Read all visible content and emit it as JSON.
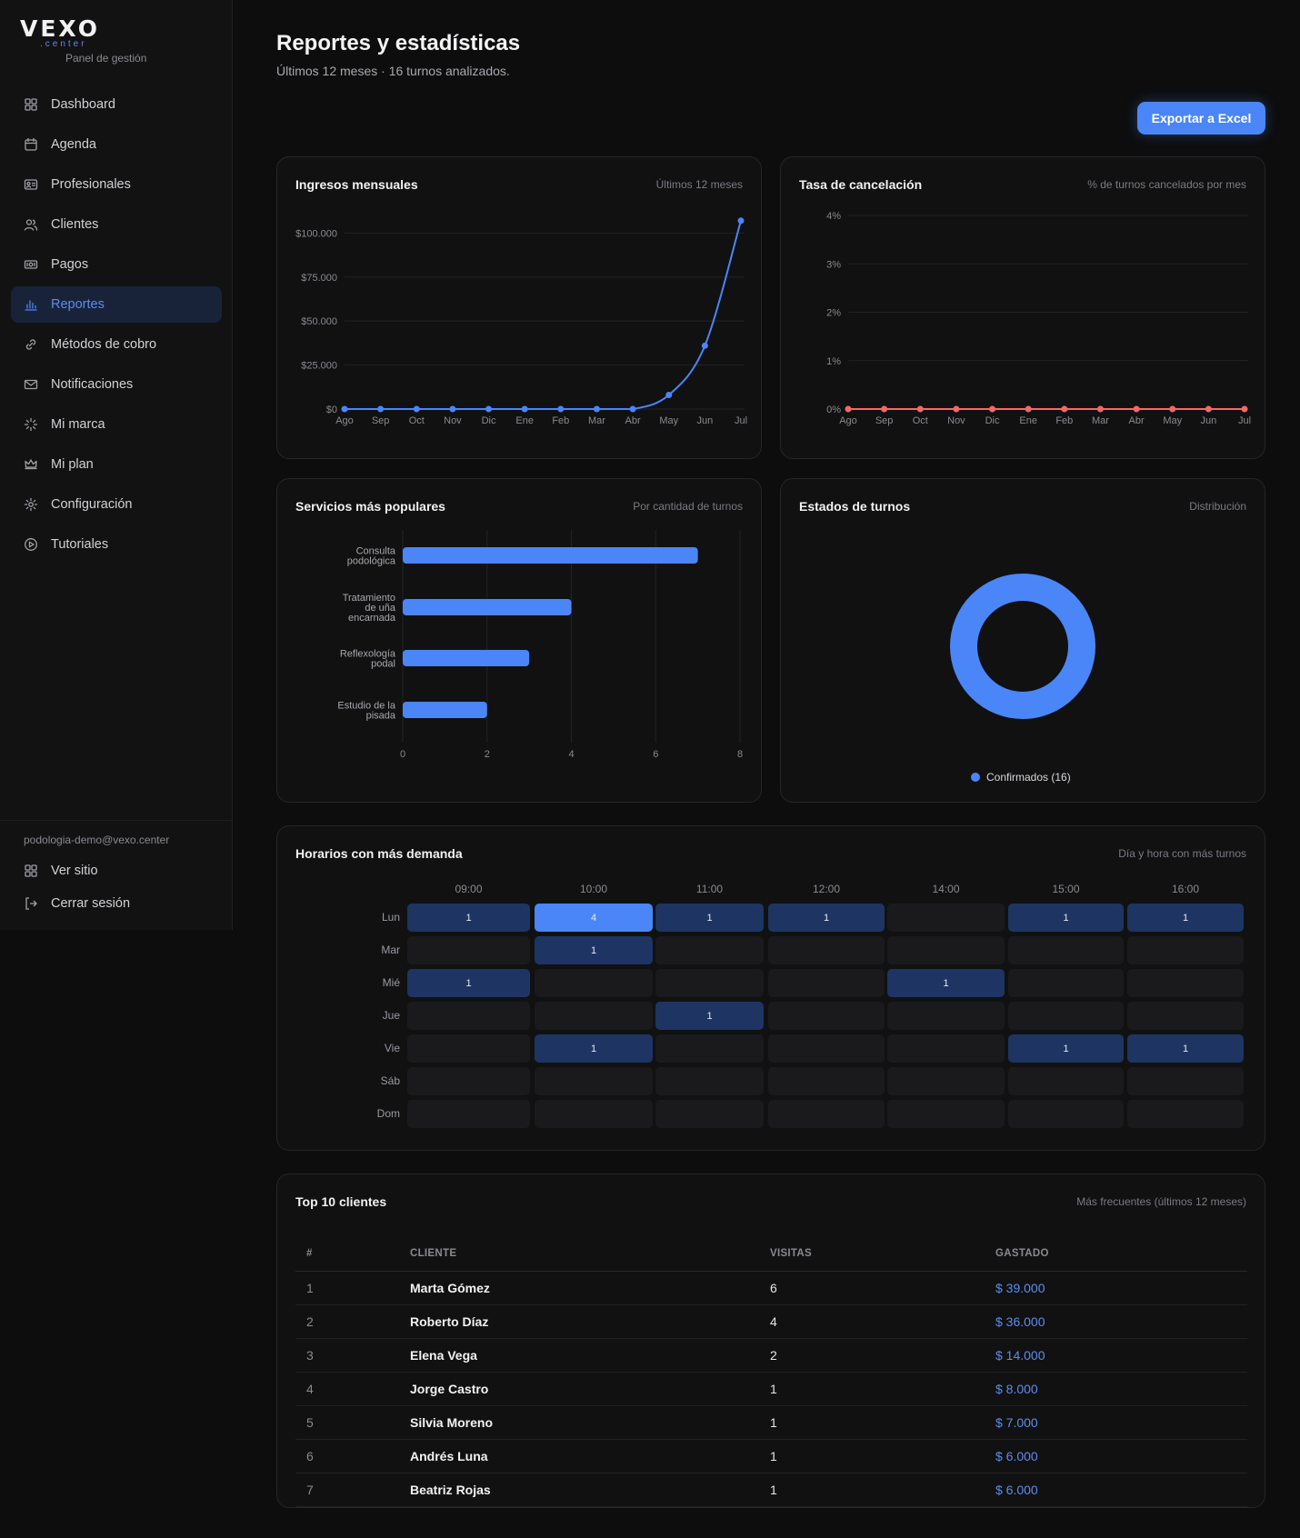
{
  "brand": {
    "logo_word": "VEXO",
    "logo_sub": ".center",
    "panel_label": "Panel de gestión"
  },
  "sidebar": {
    "items": [
      {
        "label": "Dashboard",
        "icon": "dashboard-icon"
      },
      {
        "label": "Agenda",
        "icon": "calendar-icon"
      },
      {
        "label": "Profesionales",
        "icon": "id-card-icon"
      },
      {
        "label": "Clientes",
        "icon": "users-icon"
      },
      {
        "label": "Pagos",
        "icon": "money-icon"
      },
      {
        "label": "Reportes",
        "icon": "bar-chart-icon",
        "active": true
      },
      {
        "label": "Métodos de cobro",
        "icon": "link-icon"
      },
      {
        "label": "Notificaciones",
        "icon": "mail-icon"
      },
      {
        "label": "Mi marca",
        "icon": "sparkle-icon"
      },
      {
        "label": "Mi plan",
        "icon": "crown-icon"
      },
      {
        "label": "Configuración",
        "icon": "gear-icon"
      },
      {
        "label": "Tutoriales",
        "icon": "play-icon"
      }
    ],
    "email": "podologia-demo@vexo.center",
    "view_site": "Ver sitio",
    "logout": "Cerrar sesión"
  },
  "header": {
    "title": "Reportes y estadísticas",
    "subtitle": "Últimos 12 meses · 16 turnos analizados.",
    "export_label": "Exportar a Excel"
  },
  "colors": {
    "accent": "#4a86f7",
    "cancel": "#f06a6a",
    "heat_low": "#1e3563",
    "heat_high": "#4a86f7"
  },
  "cards": {
    "income": {
      "title": "Ingresos mensuales",
      "note": "Últimos 12 meses"
    },
    "cancel": {
      "title": "Tasa de cancelación",
      "note": "% de turnos cancelados por mes"
    },
    "services": {
      "title": "Servicios más populares",
      "note": "Por cantidad de turnos"
    },
    "states": {
      "title": "Estados de turnos",
      "note": "Distribución"
    },
    "heatmap": {
      "title": "Horarios con más demanda",
      "note": "Día y hora con más turnos"
    },
    "top": {
      "title": "Top 10 clientes",
      "note": "Más frecuentes (últimos 12 meses)"
    }
  },
  "chart_data": [
    {
      "type": "line",
      "categories": [
        "Ago",
        "Sep",
        "Oct",
        "Nov",
        "Dic",
        "Ene",
        "Feb",
        "Mar",
        "Abr",
        "May",
        "Jun",
        "Jul"
      ],
      "values": [
        0,
        0,
        0,
        0,
        0,
        0,
        0,
        0,
        0,
        8000,
        36000,
        107000
      ],
      "ylim": [
        0,
        110000
      ],
      "yticks": [
        0,
        25000,
        50000,
        75000,
        100000
      ],
      "ytick_labels": [
        "$0",
        "$25.000",
        "$50.000",
        "$75.000",
        "$100.000"
      ],
      "grid": true
    },
    {
      "type": "line",
      "categories": [
        "Ago",
        "Sep",
        "Oct",
        "Nov",
        "Dic",
        "Ene",
        "Feb",
        "Mar",
        "Abr",
        "May",
        "Jun",
        "Jul"
      ],
      "values": [
        0,
        0,
        0,
        0,
        0,
        0,
        0,
        0,
        0,
        0,
        0,
        0
      ],
      "ylim": [
        0,
        4
      ],
      "yticks": [
        0,
        1,
        2,
        3,
        4
      ],
      "ytick_labels": [
        "0%",
        "1%",
        "2%",
        "3%",
        "4%"
      ],
      "grid": true
    },
    {
      "type": "bar",
      "orientation": "horizontal",
      "categories": [
        [
          "Consulta",
          "podológica"
        ],
        [
          "Tratamiento",
          "de uña",
          "encarnada"
        ],
        [
          "Reflexología",
          "podal"
        ],
        [
          "Estudio de la",
          "pisada"
        ]
      ],
      "values": [
        7,
        4,
        3,
        2
      ],
      "xlim": [
        0,
        8
      ],
      "xticks": [
        0,
        2,
        4,
        6,
        8
      ],
      "grid": true
    },
    {
      "type": "pie",
      "donut": true,
      "slices": [
        {
          "label": "Confirmados (16)",
          "value": 16,
          "color": "#4a86f7"
        }
      ],
      "legend": "bottom"
    },
    {
      "type": "heatmap",
      "columns": [
        "09:00",
        "10:00",
        "11:00",
        "12:00",
        "14:00",
        "15:00",
        "16:00"
      ],
      "rows": [
        "Lun",
        "Mar",
        "Mié",
        "Jue",
        "Vie",
        "Sáb",
        "Dom"
      ],
      "values": [
        [
          1,
          4,
          1,
          1,
          0,
          1,
          1
        ],
        [
          0,
          1,
          0,
          0,
          0,
          0,
          0
        ],
        [
          1,
          0,
          0,
          0,
          1,
          0,
          0
        ],
        [
          0,
          0,
          1,
          0,
          0,
          0,
          0
        ],
        [
          0,
          1,
          0,
          0,
          0,
          1,
          1
        ],
        [
          0,
          0,
          0,
          0,
          0,
          0,
          0
        ],
        [
          0,
          0,
          0,
          0,
          0,
          0,
          0
        ]
      ]
    },
    {
      "type": "table",
      "columns": [
        "#",
        "CLIENTE",
        "VISITAS",
        "GASTADO"
      ],
      "rows": [
        [
          "1",
          "Marta Gómez",
          "6",
          "$ 39.000"
        ],
        [
          "2",
          "Roberto Díaz",
          "4",
          "$ 36.000"
        ],
        [
          "3",
          "Elena Vega",
          "2",
          "$ 14.000"
        ],
        [
          "4",
          "Jorge Castro",
          "1",
          "$ 8.000"
        ],
        [
          "5",
          "Silvia Moreno",
          "1",
          "$ 7.000"
        ],
        [
          "6",
          "Andrés Luna",
          "1",
          "$ 6.000"
        ],
        [
          "7",
          "Beatriz Rojas",
          "1",
          "$ 6.000"
        ]
      ]
    }
  ]
}
